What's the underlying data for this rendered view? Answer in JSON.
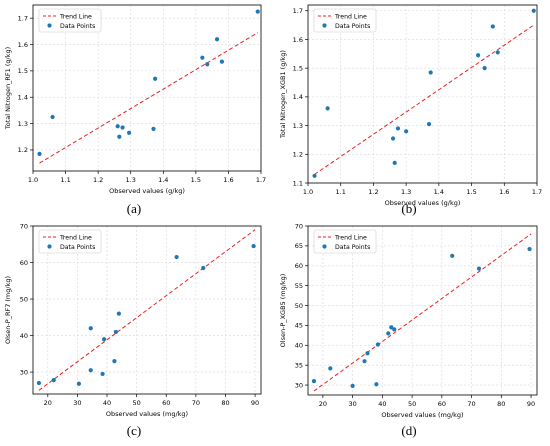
{
  "style": {
    "trend_color": "#e8201f",
    "point_color": "#1f77b4",
    "grid_color": "#d9d9d9"
  },
  "chart_data": [
    {
      "type": "scatter",
      "panel_label": "(a)",
      "xlabel": "Observed values (g/kg)",
      "ylabel": "Total Nitrogen_RF1 (g/kg)",
      "xlim": [
        1.0,
        1.7
      ],
      "ylim": [
        1.12,
        1.75
      ],
      "xticks": [
        1.0,
        1.1,
        1.2,
        1.3,
        1.4,
        1.5,
        1.6,
        1.7
      ],
      "xtick_labels": [
        "1.0",
        "1.1",
        "1.2",
        "1.3",
        "1.4",
        "1.5",
        "1.6",
        "1.7"
      ],
      "yticks": [
        1.2,
        1.3,
        1.4,
        1.5,
        1.6,
        1.7
      ],
      "ytick_labels": [
        "1.2",
        "1.3",
        "1.4",
        "1.5",
        "1.6",
        "1.7"
      ],
      "legend": [
        "Trend Line",
        "Data Points"
      ],
      "legend_position": "top-left",
      "grid": true,
      "trend_line": {
        "x": [
          1.02,
          1.69
        ],
        "y": [
          1.15,
          1.645
        ]
      },
      "points": [
        {
          "x": 1.02,
          "y": 1.185
        },
        {
          "x": 1.06,
          "y": 1.325
        },
        {
          "x": 1.26,
          "y": 1.29
        },
        {
          "x": 1.265,
          "y": 1.25
        },
        {
          "x": 1.275,
          "y": 1.285
        },
        {
          "x": 1.295,
          "y": 1.265
        },
        {
          "x": 1.37,
          "y": 1.28
        },
        {
          "x": 1.375,
          "y": 1.47
        },
        {
          "x": 1.52,
          "y": 1.55
        },
        {
          "x": 1.535,
          "y": 1.525
        },
        {
          "x": 1.565,
          "y": 1.62
        },
        {
          "x": 1.58,
          "y": 1.535
        },
        {
          "x": 1.69,
          "y": 1.725
        }
      ]
    },
    {
      "type": "scatter",
      "panel_label": "(b)",
      "xlabel": "Observed values (g/kg)",
      "ylabel": "Total Nitrogen_XGB1 (g/kg)",
      "xlim": [
        1.0,
        1.7
      ],
      "ylim": [
        1.1,
        1.72
      ],
      "xticks": [
        1.0,
        1.1,
        1.2,
        1.3,
        1.4,
        1.5,
        1.6,
        1.7
      ],
      "xtick_labels": [
        "1.0",
        "1.1",
        "1.2",
        "1.3",
        "1.4",
        "1.5",
        "1.6",
        "1.7"
      ],
      "yticks": [
        1.1,
        1.2,
        1.3,
        1.4,
        1.5,
        1.6,
        1.7
      ],
      "ytick_labels": [
        "1.1",
        "1.2",
        "1.3",
        "1.4",
        "1.5",
        "1.6",
        "1.7"
      ],
      "legend": [
        "Trend Line",
        "Data Points"
      ],
      "legend_position": "top-left",
      "grid": true,
      "trend_line": {
        "x": [
          1.02,
          1.69
        ],
        "y": [
          1.13,
          1.65
        ]
      },
      "points": [
        {
          "x": 1.02,
          "y": 1.125
        },
        {
          "x": 1.06,
          "y": 1.36
        },
        {
          "x": 1.26,
          "y": 1.255
        },
        {
          "x": 1.265,
          "y": 1.17
        },
        {
          "x": 1.275,
          "y": 1.29
        },
        {
          "x": 1.3,
          "y": 1.28
        },
        {
          "x": 1.37,
          "y": 1.305
        },
        {
          "x": 1.375,
          "y": 1.485
        },
        {
          "x": 1.52,
          "y": 1.545
        },
        {
          "x": 1.54,
          "y": 1.5
        },
        {
          "x": 1.565,
          "y": 1.645
        },
        {
          "x": 1.58,
          "y": 1.555
        },
        {
          "x": 1.69,
          "y": 1.7
        }
      ]
    },
    {
      "type": "scatter",
      "panel_label": "(c)",
      "xlabel": "Observed values (mg/kg)",
      "ylabel": "Olsen-P_RF7 (mg/kg)",
      "xlim": [
        15,
        92
      ],
      "ylim": [
        24,
        70
      ],
      "xticks": [
        20,
        30,
        40,
        50,
        60,
        70,
        80,
        90
      ],
      "xtick_labels": [
        "20",
        "30",
        "40",
        "50",
        "60",
        "70",
        "80",
        "90"
      ],
      "yticks": [
        30,
        40,
        50,
        60,
        70
      ],
      "ytick_labels": [
        "30",
        "40",
        "50",
        "60",
        "70"
      ],
      "legend": [
        "Trend Line",
        "Data Points"
      ],
      "legend_position": "top-left",
      "grid": true,
      "trend_line": {
        "x": [
          17,
          90
        ],
        "y": [
          25,
          69
        ]
      },
      "points": [
        {
          "x": 17,
          "y": 27
        },
        {
          "x": 22,
          "y": 27.8
        },
        {
          "x": 30.5,
          "y": 26.8
        },
        {
          "x": 34.5,
          "y": 30.5
        },
        {
          "x": 34.5,
          "y": 42
        },
        {
          "x": 38.5,
          "y": 29.5
        },
        {
          "x": 39,
          "y": 39
        },
        {
          "x": 42.5,
          "y": 33
        },
        {
          "x": 43,
          "y": 41
        },
        {
          "x": 44,
          "y": 46
        },
        {
          "x": 63.5,
          "y": 61.5
        },
        {
          "x": 72.5,
          "y": 58.5
        },
        {
          "x": 89.5,
          "y": 64.5
        }
      ]
    },
    {
      "type": "scatter",
      "panel_label": "(d)",
      "xlabel": "Observed values (mg/kg)",
      "ylabel": "Olsen-P_XGB5 (mg/kg)",
      "xlim": [
        15,
        92
      ],
      "ylim": [
        27.5,
        70
      ],
      "xticks": [
        20,
        30,
        40,
        50,
        60,
        70,
        80,
        90
      ],
      "xtick_labels": [
        "20",
        "30",
        "40",
        "50",
        "60",
        "70",
        "80",
        "90"
      ],
      "yticks": [
        30,
        35,
        40,
        45,
        50,
        55,
        60,
        65,
        70
      ],
      "ytick_labels": [
        "30",
        "35",
        "40",
        "45",
        "50",
        "55",
        "60",
        "65",
        "70"
      ],
      "legend": [
        "Trend Line",
        "Data Points"
      ],
      "legend_position": "top-left",
      "grid": true,
      "trend_line": {
        "x": [
          17,
          90
        ],
        "y": [
          28.5,
          68
        ]
      },
      "points": [
        {
          "x": 17,
          "y": 31
        },
        {
          "x": 22.5,
          "y": 34.2
        },
        {
          "x": 30,
          "y": 29.8
        },
        {
          "x": 34,
          "y": 36
        },
        {
          "x": 35,
          "y": 38
        },
        {
          "x": 38,
          "y": 30.2
        },
        {
          "x": 38.5,
          "y": 40.2
        },
        {
          "x": 42,
          "y": 43
        },
        {
          "x": 43,
          "y": 44.5
        },
        {
          "x": 44,
          "y": 44
        },
        {
          "x": 63.5,
          "y": 62.5
        },
        {
          "x": 72.5,
          "y": 59.3
        },
        {
          "x": 89.5,
          "y": 64.2
        }
      ]
    }
  ]
}
